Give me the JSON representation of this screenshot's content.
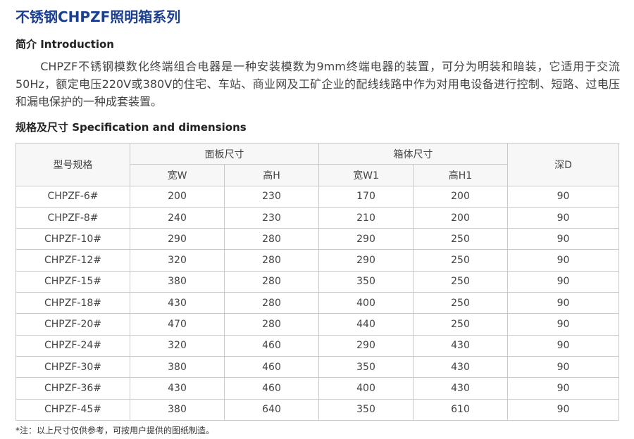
{
  "header": {
    "title": "不锈钢CHPZF照明箱系列"
  },
  "introduction": {
    "heading": "简介 Introduction",
    "text": "CHPZF不锈钢模数化终端组合电器是一种安装模数为9mm终端电器的装置，可分为明装和暗装，它适用于交流50Hz，额定电压220V或380V的住宅、车站、商业网及工矿企业的配线线路中作为对用电设备进行控制、短路、过电压和漏电保护的一种成套装置。"
  },
  "specification": {
    "heading": "规格及尺寸 Specification and dimensions"
  },
  "table": {
    "header": {
      "model": "型号规格",
      "panel": "面板尺寸",
      "box": "箱体尺寸",
      "depth": "深D",
      "panel_w": "宽W",
      "panel_h": "高H",
      "box_w": "宽W1",
      "box_h": "高H1"
    },
    "rows": [
      [
        "CHPZF-6#",
        200,
        230,
        170,
        200,
        90
      ],
      [
        "CHPZF-8#",
        240,
        230,
        210,
        200,
        90
      ],
      [
        "CHPZF-10#",
        290,
        280,
        290,
        250,
        90
      ],
      [
        "CHPZF-12#",
        320,
        280,
        290,
        250,
        90
      ],
      [
        "CHPZF-15#",
        380,
        280,
        350,
        250,
        90
      ],
      [
        "CHPZF-18#",
        430,
        280,
        400,
        250,
        90
      ],
      [
        "CHPZF-20#",
        470,
        280,
        440,
        250,
        90
      ],
      [
        "CHPZF-24#",
        320,
        460,
        290,
        430,
        90
      ],
      [
        "CHPZF-30#",
        380,
        460,
        350,
        430,
        90
      ],
      [
        "CHPZF-36#",
        430,
        460,
        400,
        430,
        90
      ],
      [
        "CHPZF-45#",
        380,
        640,
        350,
        610,
        90
      ]
    ]
  },
  "footnote": "*注：以上尺寸仅供参考，可按用户提供的图纸制造。"
}
